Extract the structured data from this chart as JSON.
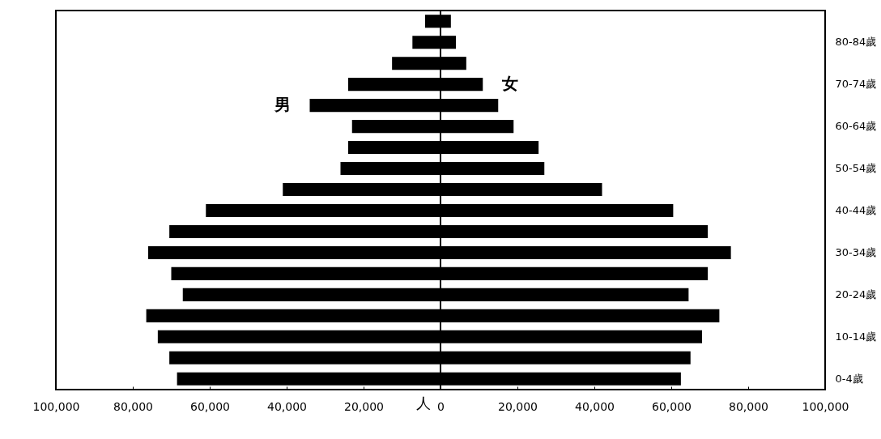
{
  "chart_data": {
    "type": "bar",
    "orientation": "horizontal",
    "xlabel": "人",
    "categories": [
      null,
      "80-84歲",
      null,
      "70-74歲",
      null,
      "60-64歲",
      null,
      "50-54歲",
      null,
      "40-44歲",
      null,
      "30-34歲",
      null,
      "20-24歲",
      null,
      "10-14歲",
      null,
      "0-4歲"
    ],
    "series": [
      {
        "name": "男",
        "color": "#000000",
        "values": [
          -4000,
          -7300,
          -12600,
          -24000,
          -34000,
          -23000,
          -24000,
          -26000,
          -41000,
          -61000,
          -70500,
          -76000,
          -70000,
          -67000,
          -76500,
          -73500,
          -70500,
          -68500
        ]
      },
      {
        "name": "女",
        "color": "#000000",
        "values": [
          2700,
          4000,
          6700,
          11000,
          15000,
          19000,
          25500,
          27000,
          42000,
          60500,
          69500,
          75500,
          69500,
          64500,
          72500,
          68000,
          65000,
          62500
        ]
      }
    ],
    "xlim": [
      -100000,
      100000
    ],
    "xticks": [
      {
        "value": -100000,
        "label": "100,000"
      },
      {
        "value": -80000,
        "label": "80,000"
      },
      {
        "value": -60000,
        "label": "60,000"
      },
      {
        "value": -40000,
        "label": "40,000"
      },
      {
        "value": -20000,
        "label": "20,000"
      },
      0,
      {
        "value": 20000,
        "label": "20,000"
      },
      {
        "value": 40000,
        "label": "40,000"
      },
      {
        "value": 60000,
        "label": "60,000"
      },
      {
        "value": 80000,
        "label": "80,000"
      },
      {
        "value": 100000,
        "label": "100,000"
      }
    ],
    "ref_lines": [
      {
        "axis": "x",
        "value": 0,
        "color": "#000000"
      }
    ],
    "grid": false,
    "stacked": true
  }
}
